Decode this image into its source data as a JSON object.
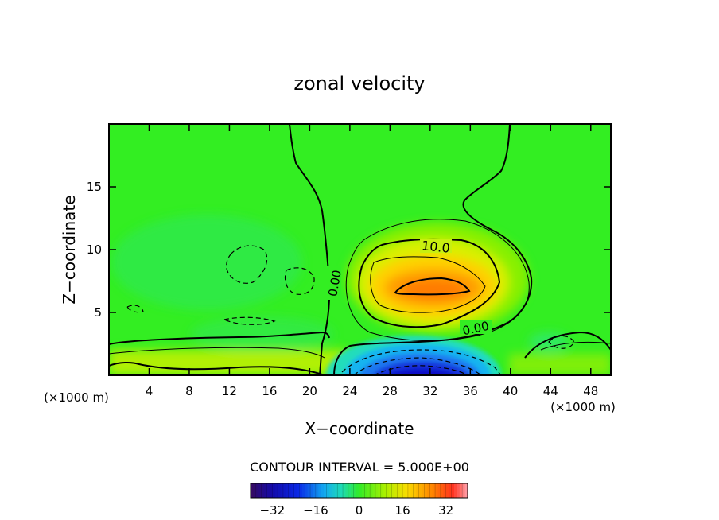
{
  "chart_data": {
    "type": "contour",
    "title": "zonal velocity",
    "xlabel": "X−coordinate",
    "ylabel": "Z−coordinate",
    "x_unit_left": "(×1000 m)",
    "x_unit_right": "(×1000 m)",
    "xlim": [
      0,
      50
    ],
    "ylim": [
      0,
      20
    ],
    "xticks": [
      4,
      8,
      12,
      16,
      20,
      24,
      28,
      32,
      36,
      40,
      44,
      48
    ],
    "yticks": [
      5,
      10,
      15
    ],
    "contour_interval_label": "CONTOUR INTERVAL = 5.000E+00",
    "contour_interval": 5,
    "contour_labels": [
      {
        "text": "10.0",
        "value": 10,
        "x": 31,
        "z": 10.2
      },
      {
        "text": "0.00",
        "value": 0,
        "x": 22.6,
        "z": 7.3
      },
      {
        "text": "0.00",
        "value": 0,
        "x": 37.5,
        "z": 3.7
      }
    ],
    "features": [
      {
        "kind": "max",
        "x": 31.5,
        "z": 7.0,
        "value": 17
      },
      {
        "kind": "min",
        "x": 31.5,
        "z": 0.6,
        "value": -33
      },
      {
        "kind": "min",
        "x": 15,
        "z": 9.0,
        "value": -3
      }
    ],
    "colorbar": {
      "ticks": [
        "−32",
        "−16",
        "0",
        "16",
        "32"
      ],
      "tick_values": [
        -32,
        -16,
        0,
        16,
        32
      ],
      "range": [
        -40,
        40
      ]
    },
    "colors": {
      "background_zero": "#33ee22",
      "positive_peak": "#ff7a00",
      "negative_peak": "#0a10c8"
    }
  }
}
